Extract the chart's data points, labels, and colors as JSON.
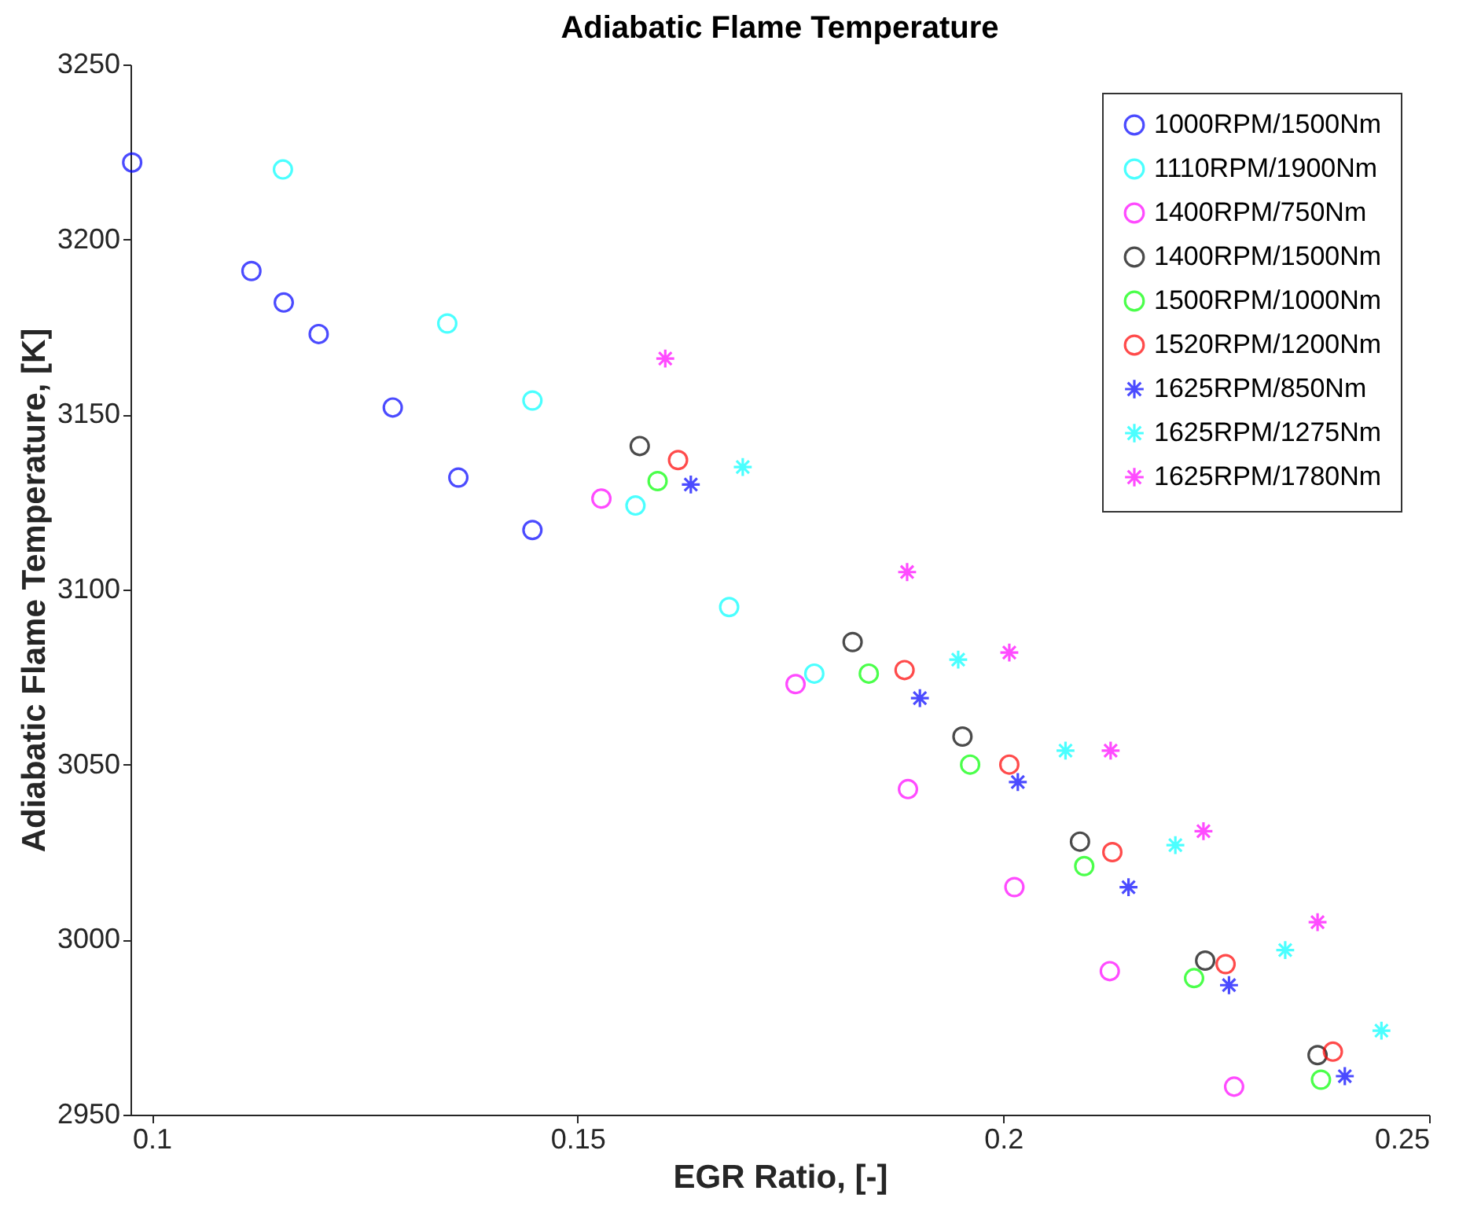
{
  "chart_data": {
    "type": "scatter",
    "title": "Adiabatic Flame Temperature",
    "xlabel": "EGR Ratio, [-]",
    "ylabel": "Adiabatic Flame Temperature, [K]",
    "xlim": [
      0.0975,
      0.25
    ],
    "xticks": [
      0.1,
      0.15,
      0.2,
      0.25
    ],
    "ylim": [
      2950,
      3250
    ],
    "yticks": [
      2950,
      3000,
      3050,
      3100,
      3150,
      3200,
      3250
    ],
    "grid": false,
    "legend": "top right",
    "series": [
      {
        "name": "1000RPM/1500Nm",
        "color": "#0000ff",
        "marker": "circle",
        "x": [
          0.0977,
          0.1117,
          0.1155,
          0.1196,
          0.1283,
          0.136,
          0.1447
        ],
        "values": [
          3222,
          3191,
          3182,
          3173,
          3152,
          3132,
          3117
        ]
      },
      {
        "name": "1110RPM/1900Nm",
        "color": "#00ffff",
        "marker": "circle",
        "x": [
          0.1154,
          0.1347,
          0.1447,
          0.1568,
          0.1678,
          0.1778
        ],
        "values": [
          3220,
          3176,
          3154,
          3124,
          3095,
          3076
        ]
      },
      {
        "name": "1400RPM/750Nm",
        "color": "#ff00ff",
        "marker": "circle",
        "x": [
          0.1528,
          0.1756,
          0.1888,
          0.2013,
          0.2125,
          0.2271
        ],
        "values": [
          3126,
          3073,
          3043,
          3015,
          2991,
          2958
        ]
      },
      {
        "name": "1400RPM/1500Nm",
        "color": "#000000",
        "marker": "circle",
        "x": [
          0.1573,
          0.1823,
          0.1952,
          0.209,
          0.2237,
          0.2369
        ],
        "values": [
          3141,
          3085,
          3058,
          3028,
          2994,
          2967
        ]
      },
      {
        "name": "1500RPM/1000Nm",
        "color": "#00ff00",
        "marker": "circle",
        "x": [
          0.1594,
          0.1842,
          0.1961,
          0.2095,
          0.2224,
          0.2373
        ],
        "values": [
          3131,
          3076,
          3050,
          3021,
          2989,
          2960
        ]
      },
      {
        "name": "1520RPM/1200Nm",
        "color": "#ff0000",
        "marker": "circle",
        "x": [
          0.1618,
          0.1884,
          0.2007,
          0.2128,
          0.2261,
          0.2387
        ],
        "values": [
          3137,
          3077,
          3050,
          3025,
          2993,
          2968
        ]
      },
      {
        "name": "1625RPM/850Nm",
        "color": "#0000ff",
        "marker": "cross",
        "x": [
          0.1633,
          0.1902,
          0.2017,
          0.2147,
          0.2265,
          0.2401
        ],
        "values": [
          3130,
          3069,
          3045,
          3015,
          2987,
          2961
        ]
      },
      {
        "name": "1625RPM/1275Nm",
        "color": "#00ffff",
        "marker": "cross",
        "x": [
          0.1694,
          0.1947,
          0.2073,
          0.2202,
          0.2331,
          0.2444
        ],
        "values": [
          3135,
          3080,
          3054,
          3027,
          2997,
          2974
        ]
      },
      {
        "name": "1625RPM/1780Nm",
        "color": "#ff00ff",
        "marker": "cross",
        "x": [
          0.1603,
          0.1887,
          0.2007,
          0.2126,
          0.2235,
          0.2369
        ],
        "values": [
          3166,
          3105,
          3082,
          3054,
          3031,
          3005
        ]
      }
    ]
  }
}
